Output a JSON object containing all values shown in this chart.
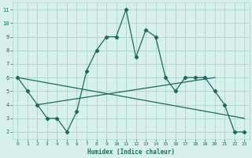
{
  "line1_x": [
    0,
    1,
    2,
    3,
    4,
    5,
    6,
    7,
    8,
    9,
    10,
    11,
    12,
    13,
    14,
    15,
    16,
    17,
    18,
    19,
    20,
    21,
    22,
    23
  ],
  "line1_y": [
    6,
    5,
    4,
    3,
    3,
    2,
    3.5,
    6.5,
    8,
    9,
    9,
    11,
    7.5,
    9.5,
    9,
    6,
    5,
    6,
    6,
    6,
    5,
    4,
    2,
    2
  ],
  "line2_x": [
    0,
    23
  ],
  "line2_y": [
    6,
    3
  ],
  "line3_x": [
    2,
    20
  ],
  "line3_y": [
    4,
    6
  ],
  "line_color": "#1a6b5e",
  "bg_color": "#d8f0ec",
  "grid_color": "#b0d8d0",
  "xlabel": "Humidex (Indice chaleur)",
  "xlim": [
    -0.5,
    23.5
  ],
  "ylim": [
    1.5,
    11.5
  ],
  "yticks": [
    2,
    3,
    4,
    5,
    6,
    7,
    8,
    9,
    10,
    11
  ],
  "xticks": [
    0,
    1,
    2,
    3,
    4,
    5,
    6,
    7,
    8,
    9,
    10,
    11,
    12,
    13,
    14,
    15,
    16,
    17,
    18,
    19,
    20,
    21,
    22,
    23
  ]
}
